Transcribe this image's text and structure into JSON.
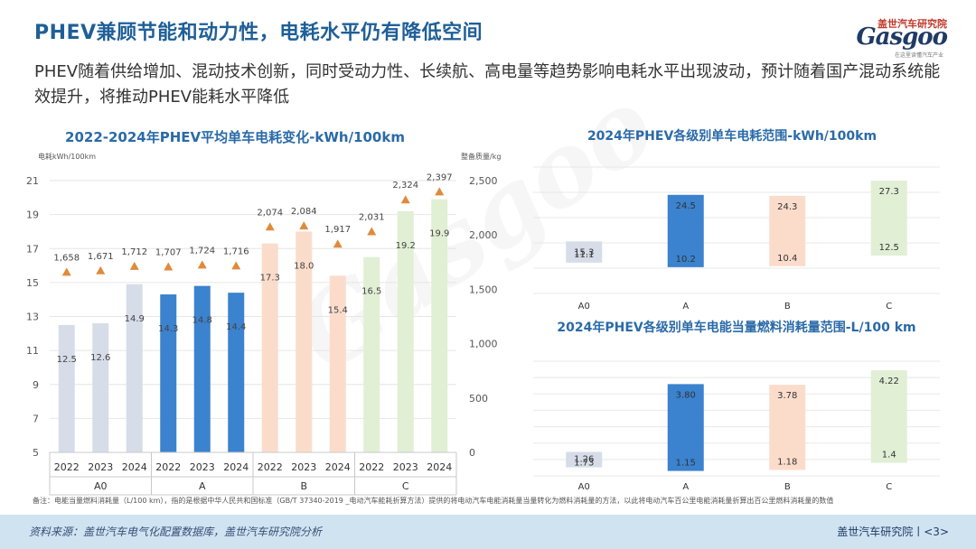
{
  "header": {
    "title": "PHEV兼顾节能和动力性，电耗水平仍有降低空间",
    "subtitle": "PHEV随着供给增加、混动技术创新，同时受动力性、长续航、高电量等趋势影响电耗水平出现波动，预计随着国产混动系统能效提升，将推动PHEV能耗水平降低",
    "logo_top": "盖世汽车研究院",
    "logo_main": "Gasgoo",
    "logo_sub": "在这里读懂汽车产业"
  },
  "watermark": "Gasgoo",
  "note": "备注：电能当量燃料消耗量（L/100 km），指的是根据中华人民共和国标准（GB/T 37340-2019 _电动汽车能耗折算方法）提供的将电动汽车电能消耗量当量转化为燃料消耗量的方法，以此将电动汽车百公里电能消耗量折算出百公里燃料消耗量的数值",
  "footer": {
    "source": "资料来源：盖世汽车电气化配置数据库，盖世汽车研究院分析",
    "page": "盖世汽车研究院丨<3>"
  },
  "colors": {
    "A0": "#d6dde8",
    "A": "#3b82cf",
    "B": "#fbdccb",
    "C": "#e1efd5",
    "marker": "#e08a3c",
    "title": "#1f5f97"
  },
  "chart_data": [
    {
      "type": "bar",
      "title": "2022-2024年PHEV平均单车电耗变化-kWh/100km",
      "ylabel": "电耗kWh/100km",
      "y2label": "整备质量/kg",
      "ylim": [
        5,
        21
      ],
      "yticks": [
        "5",
        "7",
        "9",
        "11",
        "13",
        "15",
        "17",
        "19",
        "21"
      ],
      "y2lim": [
        0,
        2500
      ],
      "y2ticks": [
        "0",
        "500",
        "1,000",
        "1,500",
        "2,000",
        "2,500"
      ],
      "groups": [
        "A0",
        "A",
        "B",
        "C"
      ],
      "years": [
        "2022",
        "2023",
        "2024"
      ],
      "values": [
        12.5,
        12.6,
        14.9,
        14.3,
        14.8,
        14.4,
        17.3,
        18.0,
        15.4,
        16.5,
        19.2,
        19.9
      ],
      "labels": [
        "12.5",
        "12.6",
        "14.9",
        "14.3",
        "14.8",
        "14.4",
        "17.3",
        "18.0",
        "15.4",
        "16.5",
        "19.2",
        "19.9"
      ],
      "mass": [
        1658,
        1671,
        1712,
        1707,
        1724,
        1716,
        2074,
        2084,
        1917,
        2031,
        2324,
        2397
      ],
      "mass_labels": [
        "1,658",
        "1,671",
        "1,712",
        "1,707",
        "1,724",
        "1,716",
        "2,074",
        "2,084",
        "1,917",
        "2,031",
        "2,324",
        "2,397"
      ]
    },
    {
      "type": "bar",
      "title": "2024年PHEV各级别单车电耗范围-kWh/100km",
      "categories": [
        "A0",
        "A",
        "B",
        "C"
      ],
      "low": [
        11.1,
        10.2,
        10.4,
        12.5
      ],
      "high": [
        15.3,
        24.5,
        24.3,
        27.3
      ],
      "low_labels": [
        "11.1",
        "10.2",
        "10.4",
        "12.5"
      ],
      "high_labels": [
        "15.3",
        "24.5",
        "24.3",
        "27.3"
      ],
      "ylim": [
        5,
        30
      ]
    },
    {
      "type": "bar",
      "title": "2024年PHEV各级别单车电能当量燃料消耗量范围-L/100 km",
      "categories": [
        "A0",
        "A",
        "B",
        "C"
      ],
      "low": [
        1.26,
        1.15,
        1.18,
        1.4
      ],
      "high": [
        1.73,
        3.8,
        3.78,
        4.22
      ],
      "low_labels": [
        "1.26",
        "1.15",
        "1.18",
        "1.4"
      ],
      "high_labels": [
        "1.73",
        "3.80",
        "3.78",
        "4.22"
      ],
      "ylim": [
        1.0,
        4.5
      ]
    }
  ]
}
